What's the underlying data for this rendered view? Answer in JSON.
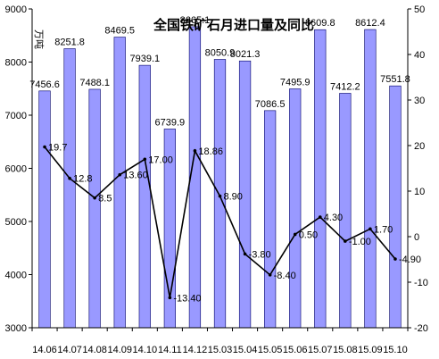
{
  "chart_data": {
    "type": "bar",
    "title": "全国铁矿石月进口量及同比",
    "y_unit": "万吨",
    "categories": [
      "14.06",
      "14.07",
      "14.08",
      "14.09",
      "14.10",
      "14.11",
      "14.12",
      "15.03",
      "15.04",
      "15.05",
      "15.06",
      "15.07",
      "15.08",
      "15.09",
      "15.10"
    ],
    "series": [
      {
        "type": "bar",
        "axis": "left",
        "values": [
          7456.6,
          8251.8,
          7488.1,
          8469.5,
          7939.1,
          6739.9,
          8665.1,
          8050.9,
          8021.3,
          7086.5,
          7495.9,
          8609.8,
          7412.2,
          8612.4,
          7551.8
        ],
        "labels": [
          "7456.6",
          "8251.8",
          "7488.1",
          "8469.5",
          "7939.1",
          "6739.9",
          "8665.1",
          "8050.9",
          "8021.3",
          "7086.5",
          "7495.9",
          "8609.8",
          "7412.2",
          "8612.4",
          "7551.8"
        ],
        "color": "#9999ff"
      },
      {
        "type": "line",
        "axis": "right",
        "values": [
          19.7,
          12.8,
          8.5,
          13.6,
          17.0,
          -13.4,
          18.86,
          8.9,
          -3.8,
          -8.4,
          0.5,
          4.3,
          -1.0,
          1.7,
          -4.9
        ],
        "labels": [
          "19.7",
          "12.8",
          "8.5",
          "13.60",
          "17.00",
          "-13.40",
          "18.86",
          "8.90",
          "-3.80",
          "-8.40",
          "0.50",
          "4.30",
          "-1.00",
          "1.70",
          "-4.90"
        ],
        "color": "#000000"
      }
    ],
    "y_left": {
      "min": 3000,
      "max": 9000,
      "ticks": [
        "3000",
        "4000",
        "5000",
        "6000",
        "7000",
        "8000",
        "9000"
      ]
    },
    "y_right": {
      "min": -20,
      "max": 50,
      "ticks": [
        "-20",
        "-10",
        "0",
        "10",
        "20",
        "30",
        "40",
        "50"
      ]
    },
    "grid": false,
    "legend": "none"
  }
}
